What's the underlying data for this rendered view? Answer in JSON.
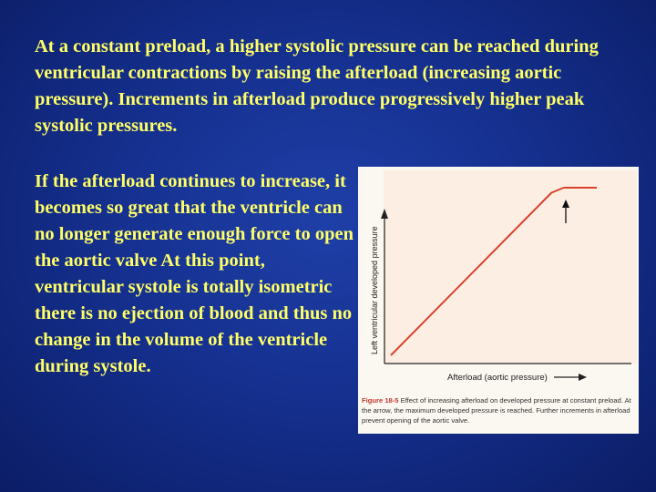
{
  "paragraphs": {
    "p1": "At a constant preload, a higher systolic pressure can be reached during ventricular contractions by raising the afterload (increasing aortic pressure). Increments in afterload produce progressively higher peak systolic pressures.",
    "p2": "If the afterload continues to increase, it becomes so great that the ventricle can no longer generate enough force to open the aortic valve At this point, ventricular systole is totally isometric there is no ejection of blood and thus no change in the volume of the ventricle during systole."
  },
  "figure": {
    "y_axis_label": "Left ventricular developed pressure",
    "x_axis_label": "Afterload (aortic pressure)",
    "caption_label": "Figure 18-5",
    "caption_text": "Effect of increasing afterload on developed pressure at constant preload. At the arrow, the maximum developed pressure is reached. Further increments in afterload prevent opening of the aortic valve.",
    "curve_color": "#d9412b",
    "panel_color": "#fdeee4"
  },
  "chart_data": {
    "type": "line",
    "title": "",
    "xlabel": "Afterload (aortic pressure)",
    "ylabel": "Left ventricular developed pressure",
    "series": [
      {
        "values_x": [
          0,
          0.78,
          0.84,
          0.9,
          1.0
        ],
        "values_y": [
          0,
          0.97,
          1.0,
          1.0,
          1.0
        ]
      }
    ],
    "annotations": [
      "arrow marking maximum developed pressure"
    ]
  }
}
